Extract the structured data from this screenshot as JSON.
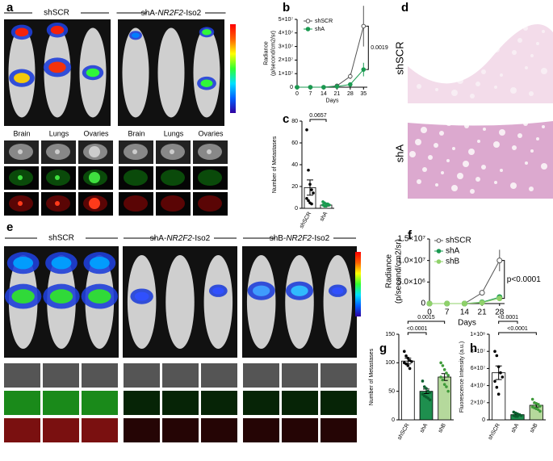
{
  "figure": {
    "panel_labels": [
      "a",
      "b",
      "c",
      "d",
      "e",
      "f",
      "g",
      "h"
    ],
    "a": {
      "headers": [
        "shSCR",
        {
          "prefix": "shA-",
          "gene": "NR2F2",
          "suffix": "-Iso2"
        }
      ],
      "tissues": [
        "Brain",
        "Lungs",
        "Ovaries",
        "Brain",
        "Lungs",
        "Ovaries"
      ]
    },
    "d": {
      "rows": [
        "shSCR",
        "shA"
      ]
    },
    "e": {
      "headers": [
        "shSCR",
        {
          "prefix": "shA-",
          "gene": "NR2F2",
          "suffix": "-Iso2"
        },
        {
          "prefix": "shB-",
          "gene": "NR2F2",
          "suffix": "-Iso2"
        }
      ]
    }
  },
  "chart_data": [
    {
      "type": "line",
      "y_label": [
        "Radiance",
        "(p/second/cm2/sr)"
      ],
      "x_label": "Days",
      "x": [
        0,
        7,
        14,
        21,
        28,
        35
      ],
      "xlim": [
        0,
        37
      ],
      "xticks": [
        0,
        7,
        14,
        21,
        28,
        35
      ],
      "ylim": [
        0,
        50000000
      ],
      "yticks": [
        0,
        {
          "value": 10000000,
          "label": "1×10⁷"
        },
        {
          "value": 20000000,
          "label": "2×10⁷"
        },
        {
          "value": 30000000,
          "label": "3×10⁷"
        },
        {
          "value": 40000000,
          "label": "4×10⁷"
        },
        {
          "value": 50000000,
          "label": "5×10⁷"
        }
      ],
      "legend": "upper left",
      "series": [
        {
          "name": "shSCR",
          "color": "#555555",
          "open": true,
          "values": [
            0,
            0,
            0,
            1000000,
            8000000,
            45000000
          ],
          "errors": [
            0,
            0,
            0,
            500000,
            2000000,
            15000000
          ]
        },
        {
          "name": "shA",
          "color": "#1a9a50",
          "open": false,
          "values": [
            0,
            0,
            0,
            500000,
            2000000,
            13000000
          ],
          "errors": [
            0,
            0,
            0,
            200000,
            1000000,
            5000000
          ]
        }
      ],
      "annotations": [
        "0.0019"
      ]
    },
    {
      "type": "bar",
      "y_label": "Number of Metastases",
      "categories": [
        "shSCR",
        "shA"
      ],
      "values": [
        19,
        3
      ],
      "errors": [
        7,
        1
      ],
      "colors": [
        "#ffffff",
        "#ffffff"
      ],
      "point_colors": [
        "#000000",
        "#1a9a50"
      ],
      "points": [
        [
          72,
          35,
          22,
          17,
          14,
          9,
          7,
          5,
          4
        ],
        [
          6,
          5,
          4,
          4,
          3,
          3,
          2,
          2
        ]
      ],
      "ylim": [
        0,
        80
      ],
      "yticks": [
        0,
        20,
        40,
        60,
        80
      ],
      "annotations": [
        "0.0657"
      ]
    },
    {
      "type": "line",
      "y_label": [
        "Radiance",
        "(p/second/cm2/sr)"
      ],
      "x_label": "Days",
      "x": [
        0,
        7,
        14,
        21,
        28
      ],
      "xlim": [
        0,
        30
      ],
      "xticks": [
        0,
        7,
        14,
        21,
        28
      ],
      "ylim": [
        0,
        15000000
      ],
      "yticks": [
        0,
        {
          "value": 5000000,
          "label": "5.0×10⁶"
        },
        {
          "value": 10000000,
          "label": "1.0×10⁷"
        },
        {
          "value": 15000000,
          "label": "1.5×10⁷"
        }
      ],
      "legend": "upper left",
      "series": [
        {
          "name": "shSCR",
          "color": "#555555",
          "open": true,
          "values": [
            0,
            0,
            0,
            2500000,
            10000000
          ],
          "errors": [
            0,
            0,
            0,
            300000,
            2500000
          ]
        },
        {
          "name": "shA",
          "color": "#1a9a50",
          "open": false,
          "values": [
            0,
            0,
            0,
            300000,
            1500000
          ],
          "errors": [
            0,
            0,
            0,
            100000,
            300000
          ]
        },
        {
          "name": "shB",
          "color": "#8fd16a",
          "open": false,
          "values": [
            0,
            0,
            0,
            200000,
            1200000
          ],
          "errors": [
            0,
            0,
            0,
            100000,
            300000
          ]
        }
      ],
      "annotations": [
        "p<0.0001"
      ]
    },
    {
      "type": "bar",
      "y_label": "Number of Metastases",
      "categories": [
        "shSCR",
        "shA",
        "shB"
      ],
      "values": [
        103,
        50,
        75
      ],
      "errors": [
        5,
        4,
        6
      ],
      "colors": [
        "#ffffff",
        "#1e8f4e",
        "#b5d99c"
      ],
      "point_colors": [
        "#000000",
        "#0b5e2e",
        "#3f9a3a"
      ],
      "points": [
        [
          120,
          112,
          108,
          104,
          102,
          100,
          98,
          95,
          90
        ],
        [
          68,
          58,
          55,
          50,
          48,
          45,
          42,
          40,
          38,
          35
        ],
        [
          100,
          95,
          88,
          82,
          78,
          75,
          70,
          62,
          58,
          50
        ]
      ],
      "ylim": [
        0,
        150
      ],
      "yticks": [
        0,
        50,
        100,
        150
      ],
      "annotations": [
        "<0.0001",
        "0.0015"
      ]
    },
    {
      "type": "bar",
      "y_label": "Fluorescence Intensity (a.u.)",
      "categories": [
        "shSCR",
        "shA",
        "shB"
      ],
      "values": [
        55000000,
        6000000,
        17000000
      ],
      "errors": [
        8000000,
        1000000,
        2000000
      ],
      "colors": [
        "#ffffff",
        "#1e8f4e",
        "#b5d99c"
      ],
      "point_colors": [
        "#000000",
        "#0b5e2e",
        "#3f9a3a"
      ],
      "points": [
        [
          80000000,
          75000000,
          62000000,
          55000000,
          50000000,
          45000000,
          38000000,
          30000000
        ],
        [
          9000000,
          8000000,
          7000000,
          6000000,
          5000000,
          5000000,
          4000000,
          4000000
        ],
        [
          24000000,
          20000000,
          19000000,
          18000000,
          16000000,
          15000000,
          14000000,
          13000000,
          12000000,
          10000000
        ]
      ],
      "ylim": [
        0,
        100000000
      ],
      "yticks": [
        0,
        {
          "value": 20000000,
          "label": "2×10⁷"
        },
        {
          "value": 40000000,
          "label": "4×10⁷"
        },
        {
          "value": 60000000,
          "label": "6×10⁷"
        },
        {
          "value": 80000000,
          "label": "8×10⁷"
        },
        {
          "value": 100000000,
          "label": "1×10⁸"
        }
      ],
      "annotations": [
        "<0.0001",
        "<0.0001"
      ]
    }
  ]
}
